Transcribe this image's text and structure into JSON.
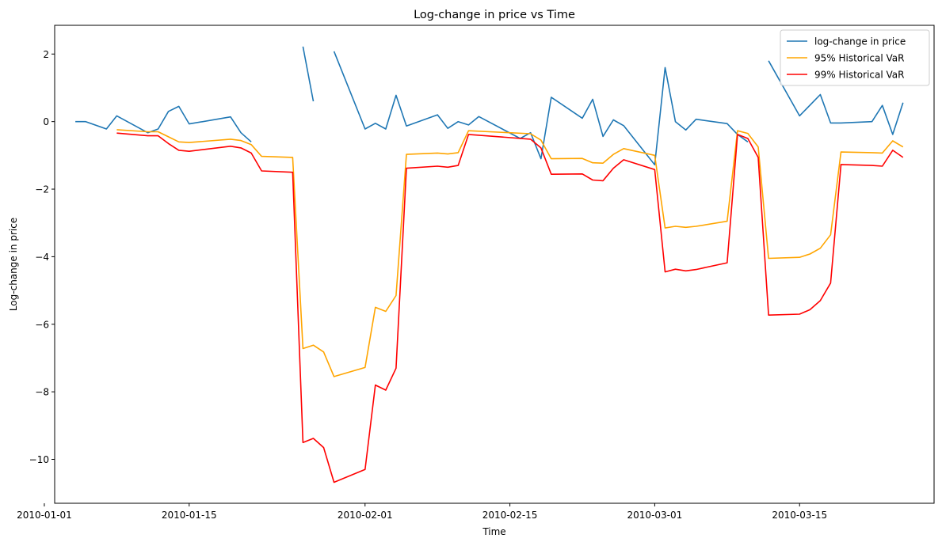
{
  "chart_data": {
    "type": "line",
    "title": "Log-change in price vs Time",
    "xlabel": "Time",
    "ylabel": "Log-change in price",
    "xlim": [
      "2010-01-02",
      "2010-03-28"
    ],
    "ylim": [
      -11.3,
      2.85
    ],
    "xticks": [
      "2010-01-01",
      "2010-01-15",
      "2010-02-01",
      "2010-02-15",
      "2010-03-01",
      "2010-03-15"
    ],
    "yticks": [
      2,
      0,
      -2,
      -4,
      -6,
      -8,
      -10
    ],
    "ytick_labels": [
      "2",
      "0",
      "−2",
      "−4",
      "−6",
      "−8",
      "−10"
    ],
    "grid": false,
    "legend_position": "top-right",
    "series": [
      {
        "name": "log-change in price",
        "color": "#1f77b4",
        "points": [
          [
            "2010-01-04",
            0.0
          ],
          [
            "2010-01-05",
            0.0
          ],
          [
            "2010-01-07",
            -0.22
          ],
          [
            "2010-01-08",
            0.17
          ],
          [
            "2010-01-11",
            -0.33
          ],
          [
            "2010-01-12",
            -0.22
          ],
          [
            "2010-01-13",
            0.3
          ],
          [
            "2010-01-14",
            0.45
          ],
          [
            "2010-01-15",
            -0.07
          ],
          [
            "2010-01-19",
            0.14
          ],
          [
            "2010-01-20",
            -0.33
          ],
          [
            "2010-01-21",
            -0.6
          ],
          [
            "2010-01-22",
            null
          ],
          [
            "2010-01-25",
            null
          ],
          [
            "2010-01-26",
            2.22
          ],
          [
            "2010-01-27",
            0.6
          ],
          [
            "2010-01-28",
            null
          ],
          [
            "2010-01-29",
            2.08
          ],
          [
            "2010-02-01",
            -0.22
          ],
          [
            "2010-02-02",
            -0.05
          ],
          [
            "2010-02-03",
            -0.22
          ],
          [
            "2010-02-04",
            0.78
          ],
          [
            "2010-02-05",
            -0.13
          ],
          [
            "2010-02-08",
            0.2
          ],
          [
            "2010-02-09",
            -0.2
          ],
          [
            "2010-02-10",
            0.0
          ],
          [
            "2010-02-11",
            -0.1
          ],
          [
            "2010-02-12",
            0.15
          ],
          [
            "2010-02-16",
            -0.5
          ],
          [
            "2010-02-17",
            -0.33
          ],
          [
            "2010-02-18",
            -1.1
          ],
          [
            "2010-02-19",
            0.72
          ],
          [
            "2010-02-22",
            0.1
          ],
          [
            "2010-02-23",
            0.66
          ],
          [
            "2010-02-24",
            -0.44
          ],
          [
            "2010-02-25",
            0.05
          ],
          [
            "2010-02-26",
            -0.12
          ],
          [
            "2010-03-01",
            -1.28
          ],
          [
            "2010-03-02",
            1.6
          ],
          [
            "2010-03-03",
            0.0
          ],
          [
            "2010-03-04",
            -0.25
          ],
          [
            "2010-03-05",
            0.07
          ],
          [
            "2010-03-08",
            -0.06
          ],
          [
            "2010-03-09",
            -0.38
          ],
          [
            "2010-03-10",
            -0.6
          ],
          [
            "2010-03-11",
            null
          ],
          [
            "2010-03-12",
            1.8
          ],
          [
            "2010-03-15",
            0.17
          ],
          [
            "2010-03-17",
            0.8
          ],
          [
            "2010-03-18",
            -0.04
          ],
          [
            "2010-03-19",
            -0.04
          ],
          [
            "2010-03-22",
            0.0
          ],
          [
            "2010-03-23",
            0.48
          ],
          [
            "2010-03-24",
            -0.38
          ],
          [
            "2010-03-25",
            0.56
          ]
        ]
      },
      {
        "name": "95% Historical VaR",
        "color": "#ffa500",
        "points": [
          [
            "2010-01-08",
            -0.24
          ],
          [
            "2010-01-11",
            -0.3
          ],
          [
            "2010-01-12",
            -0.3
          ],
          [
            "2010-01-13",
            -0.45
          ],
          [
            "2010-01-14",
            -0.6
          ],
          [
            "2010-01-15",
            -0.62
          ],
          [
            "2010-01-19",
            -0.52
          ],
          [
            "2010-01-20",
            -0.56
          ],
          [
            "2010-01-21",
            -0.68
          ],
          [
            "2010-01-22",
            -1.03
          ],
          [
            "2010-01-25",
            -1.06
          ],
          [
            "2010-01-26",
            -6.72
          ],
          [
            "2010-01-27",
            -6.62
          ],
          [
            "2010-01-28",
            -6.82
          ],
          [
            "2010-01-29",
            -7.55
          ],
          [
            "2010-02-01",
            -7.28
          ],
          [
            "2010-02-02",
            -5.5
          ],
          [
            "2010-02-03",
            -5.62
          ],
          [
            "2010-02-04",
            -5.15
          ],
          [
            "2010-02-05",
            -0.97
          ],
          [
            "2010-02-08",
            -0.93
          ],
          [
            "2010-02-09",
            -0.96
          ],
          [
            "2010-02-10",
            -0.92
          ],
          [
            "2010-02-11",
            -0.27
          ],
          [
            "2010-02-17",
            -0.36
          ],
          [
            "2010-02-18",
            -0.55
          ],
          [
            "2010-02-19",
            -1.1
          ],
          [
            "2010-02-22",
            -1.09
          ],
          [
            "2010-02-23",
            -1.22
          ],
          [
            "2010-02-24",
            -1.23
          ],
          [
            "2010-02-25",
            -0.97
          ],
          [
            "2010-02-26",
            -0.8
          ],
          [
            "2010-03-01",
            -1.0
          ],
          [
            "2010-03-02",
            -3.15
          ],
          [
            "2010-03-03",
            -3.1
          ],
          [
            "2010-03-04",
            -3.13
          ],
          [
            "2010-03-05",
            -3.1
          ],
          [
            "2010-03-08",
            -2.95
          ],
          [
            "2010-03-09",
            -0.27
          ],
          [
            "2010-03-10",
            -0.35
          ],
          [
            "2010-03-11",
            -0.75
          ],
          [
            "2010-03-12",
            -4.05
          ],
          [
            "2010-03-15",
            -4.02
          ],
          [
            "2010-03-16",
            -3.92
          ],
          [
            "2010-03-17",
            -3.75
          ],
          [
            "2010-03-18",
            -3.35
          ],
          [
            "2010-03-19",
            -0.9
          ],
          [
            "2010-03-22",
            -0.92
          ],
          [
            "2010-03-23",
            -0.93
          ],
          [
            "2010-03-24",
            -0.57
          ],
          [
            "2010-03-25",
            -0.75
          ]
        ]
      },
      {
        "name": "99% Historical VaR",
        "color": "#ff0000",
        "points": [
          [
            "2010-01-08",
            -0.34
          ],
          [
            "2010-01-11",
            -0.42
          ],
          [
            "2010-01-12",
            -0.42
          ],
          [
            "2010-01-13",
            -0.65
          ],
          [
            "2010-01-14",
            -0.85
          ],
          [
            "2010-01-15",
            -0.88
          ],
          [
            "2010-01-19",
            -0.73
          ],
          [
            "2010-01-20",
            -0.78
          ],
          [
            "2010-01-21",
            -0.93
          ],
          [
            "2010-01-22",
            -1.46
          ],
          [
            "2010-01-25",
            -1.5
          ],
          [
            "2010-01-26",
            -9.5
          ],
          [
            "2010-01-27",
            -9.38
          ],
          [
            "2010-01-28",
            -9.65
          ],
          [
            "2010-01-29",
            -10.68
          ],
          [
            "2010-02-01",
            -10.3
          ],
          [
            "2010-02-02",
            -7.8
          ],
          [
            "2010-02-03",
            -7.95
          ],
          [
            "2010-02-04",
            -7.3
          ],
          [
            "2010-02-05",
            -1.38
          ],
          [
            "2010-02-08",
            -1.32
          ],
          [
            "2010-02-09",
            -1.35
          ],
          [
            "2010-02-10",
            -1.3
          ],
          [
            "2010-02-11",
            -0.38
          ],
          [
            "2010-02-17",
            -0.52
          ],
          [
            "2010-02-18",
            -0.78
          ],
          [
            "2010-02-19",
            -1.56
          ],
          [
            "2010-02-22",
            -1.55
          ],
          [
            "2010-02-23",
            -1.73
          ],
          [
            "2010-02-24",
            -1.75
          ],
          [
            "2010-02-25",
            -1.38
          ],
          [
            "2010-02-26",
            -1.13
          ],
          [
            "2010-03-01",
            -1.42
          ],
          [
            "2010-03-02",
            -4.45
          ],
          [
            "2010-03-03",
            -4.37
          ],
          [
            "2010-03-04",
            -4.42
          ],
          [
            "2010-03-05",
            -4.38
          ],
          [
            "2010-03-08",
            -4.18
          ],
          [
            "2010-03-09",
            -0.38
          ],
          [
            "2010-03-10",
            -0.5
          ],
          [
            "2010-03-11",
            -1.06
          ],
          [
            "2010-03-12",
            -5.73
          ],
          [
            "2010-03-15",
            -5.7
          ],
          [
            "2010-03-16",
            -5.57
          ],
          [
            "2010-03-17",
            -5.3
          ],
          [
            "2010-03-18",
            -4.78
          ],
          [
            "2010-03-19",
            -1.27
          ],
          [
            "2010-03-22",
            -1.3
          ],
          [
            "2010-03-23",
            -1.32
          ],
          [
            "2010-03-24",
            -0.85
          ],
          [
            "2010-03-25",
            -1.06
          ]
        ]
      }
    ]
  }
}
